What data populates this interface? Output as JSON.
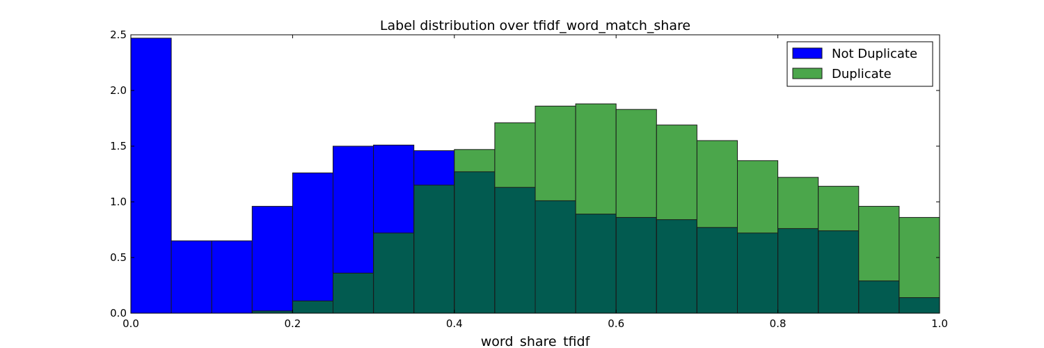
{
  "chart_data": {
    "type": "bar",
    "title": "Label distribution over tfidf_word_match_share",
    "xlabel": "word_share_tfidf",
    "ylabel": "",
    "xlim": [
      0.0,
      1.0
    ],
    "ylim": [
      0.0,
      2.5
    ],
    "grid": false,
    "legend_position": "top-right",
    "xticks": [
      "0.0",
      "0.2",
      "0.4",
      "0.6",
      "0.8",
      "1.0"
    ],
    "xtick_values": [
      0.0,
      0.2,
      0.4,
      0.6,
      0.8,
      1.0
    ],
    "yticks": [
      "0.0",
      "0.5",
      "1.0",
      "1.5",
      "2.0",
      "2.5"
    ],
    "ytick_values": [
      0.0,
      0.5,
      1.0,
      1.5,
      2.0,
      2.5
    ],
    "bin_edges": [
      0.0,
      0.05,
      0.1,
      0.15,
      0.2,
      0.25,
      0.3,
      0.35,
      0.4,
      0.45,
      0.5,
      0.55,
      0.6,
      0.65,
      0.7,
      0.75,
      0.8,
      0.85,
      0.9,
      0.95,
      1.0
    ],
    "overlap_color": "#025b50",
    "series": [
      {
        "name": "Not Duplicate",
        "color": "#0000ff",
        "values": [
          2.47,
          0.65,
          0.65,
          0.96,
          1.26,
          1.5,
          1.51,
          1.46,
          1.27,
          1.13,
          1.01,
          0.89,
          0.86,
          0.84,
          0.77,
          0.72,
          0.76,
          0.74,
          0.29,
          0.14
        ]
      },
      {
        "name": "Duplicate",
        "color": "#4ba64b",
        "values": [
          0.0,
          0.0,
          0.0,
          0.02,
          0.11,
          0.36,
          0.72,
          1.15,
          1.47,
          1.71,
          1.86,
          1.88,
          1.83,
          1.69,
          1.55,
          1.37,
          1.22,
          1.14,
          0.96,
          0.86
        ]
      }
    ]
  }
}
